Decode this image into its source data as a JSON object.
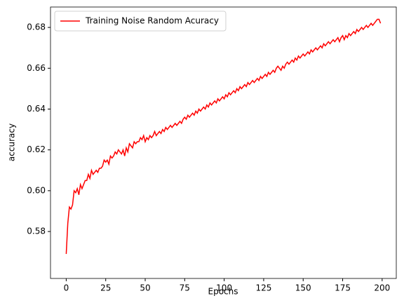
{
  "chart_data": {
    "type": "line",
    "xlabel": "Epochs",
    "ylabel": "accuracy",
    "x": [
      0,
      1,
      2,
      3,
      4,
      5,
      6,
      7,
      8,
      9,
      10,
      11,
      12,
      13,
      14,
      15,
      16,
      17,
      18,
      19,
      20,
      21,
      22,
      23,
      24,
      25,
      26,
      27,
      28,
      29,
      30,
      31,
      32,
      33,
      34,
      35,
      36,
      37,
      38,
      39,
      40,
      41,
      42,
      43,
      44,
      45,
      46,
      47,
      48,
      49,
      50,
      51,
      52,
      53,
      54,
      55,
      56,
      57,
      58,
      59,
      60,
      61,
      62,
      63,
      64,
      65,
      66,
      67,
      68,
      69,
      70,
      71,
      72,
      73,
      74,
      75,
      76,
      77,
      78,
      79,
      80,
      81,
      82,
      83,
      84,
      85,
      86,
      87,
      88,
      89,
      90,
      91,
      92,
      93,
      94,
      95,
      96,
      97,
      98,
      99,
      100,
      101,
      102,
      103,
      104,
      105,
      106,
      107,
      108,
      109,
      110,
      111,
      112,
      113,
      114,
      115,
      116,
      117,
      118,
      119,
      120,
      121,
      122,
      123,
      124,
      125,
      126,
      127,
      128,
      129,
      130,
      131,
      132,
      133,
      134,
      135,
      136,
      137,
      138,
      139,
      140,
      141,
      142,
      143,
      144,
      145,
      146,
      147,
      148,
      149,
      150,
      151,
      152,
      153,
      154,
      155,
      156,
      157,
      158,
      159,
      160,
      161,
      162,
      163,
      164,
      165,
      166,
      167,
      168,
      169,
      170,
      171,
      172,
      173,
      174,
      175,
      176,
      177,
      178,
      179,
      180,
      181,
      182,
      183,
      184,
      185,
      186,
      187,
      188,
      189,
      190,
      191,
      192,
      193,
      194,
      195,
      196,
      197,
      198,
      199
    ],
    "series": [
      {
        "name": "Training Noise Random Acuracy",
        "color": "#ff0000",
        "values": [
          0.569,
          0.584,
          0.592,
          0.591,
          0.593,
          0.6,
          0.599,
          0.601,
          0.598,
          0.603,
          0.601,
          0.603,
          0.605,
          0.605,
          0.608,
          0.606,
          0.61,
          0.608,
          0.609,
          0.61,
          0.609,
          0.611,
          0.611,
          0.612,
          0.615,
          0.614,
          0.615,
          0.613,
          0.617,
          0.616,
          0.617,
          0.619,
          0.618,
          0.62,
          0.619,
          0.618,
          0.62,
          0.617,
          0.621,
          0.619,
          0.623,
          0.622,
          0.621,
          0.624,
          0.623,
          0.624,
          0.624,
          0.626,
          0.625,
          0.627,
          0.624,
          0.626,
          0.625,
          0.627,
          0.626,
          0.627,
          0.629,
          0.627,
          0.628,
          0.629,
          0.628,
          0.63,
          0.629,
          0.631,
          0.63,
          0.631,
          0.632,
          0.631,
          0.632,
          0.633,
          0.632,
          0.633,
          0.634,
          0.633,
          0.635,
          0.636,
          0.635,
          0.637,
          0.636,
          0.637,
          0.638,
          0.637,
          0.639,
          0.638,
          0.64,
          0.639,
          0.64,
          0.641,
          0.64,
          0.642,
          0.641,
          0.643,
          0.642,
          0.643,
          0.644,
          0.643,
          0.645,
          0.644,
          0.645,
          0.646,
          0.645,
          0.647,
          0.646,
          0.648,
          0.647,
          0.648,
          0.649,
          0.648,
          0.65,
          0.649,
          0.651,
          0.65,
          0.651,
          0.652,
          0.651,
          0.653,
          0.652,
          0.653,
          0.654,
          0.653,
          0.654,
          0.655,
          0.654,
          0.656,
          0.655,
          0.656,
          0.657,
          0.656,
          0.658,
          0.657,
          0.658,
          0.659,
          0.658,
          0.66,
          0.661,
          0.66,
          0.659,
          0.661,
          0.66,
          0.662,
          0.663,
          0.662,
          0.663,
          0.664,
          0.663,
          0.665,
          0.664,
          0.666,
          0.665,
          0.666,
          0.667,
          0.666,
          0.667,
          0.668,
          0.667,
          0.669,
          0.668,
          0.669,
          0.67,
          0.669,
          0.67,
          0.671,
          0.67,
          0.672,
          0.671,
          0.672,
          0.673,
          0.672,
          0.673,
          0.674,
          0.673,
          0.674,
          0.675,
          0.673,
          0.675,
          0.676,
          0.674,
          0.676,
          0.675,
          0.677,
          0.676,
          0.677,
          0.678,
          0.677,
          0.679,
          0.678,
          0.679,
          0.68,
          0.679,
          0.68,
          0.681,
          0.68,
          0.681,
          0.682,
          0.681,
          0.682,
          0.683,
          0.684,
          0.684,
          0.682
        ]
      }
    ],
    "xlim": [
      -9.95,
      208.95
    ],
    "xticks": [
      0,
      25,
      50,
      75,
      100,
      125,
      150,
      175,
      200
    ],
    "ylim": [
      0.557,
      0.69
    ],
    "yticks": [
      0.58,
      {
        "value": 0.6,
        "label": "0.60"
      },
      0.62,
      0.64,
      0.66,
      0.68
    ],
    "grid": false,
    "legend": "upper left"
  }
}
